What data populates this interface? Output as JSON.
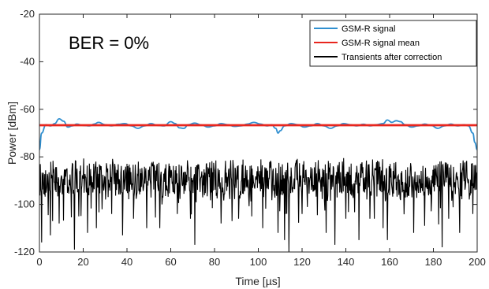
{
  "chart_data": {
    "type": "line",
    "title": "",
    "xlabel": "Time [µs]",
    "ylabel": "Power [dBm]",
    "xlim": [
      0,
      200
    ],
    "ylim": [
      -120,
      -20
    ],
    "xticks": [
      0,
      20,
      40,
      60,
      80,
      100,
      120,
      140,
      160,
      180,
      200
    ],
    "yticks": [
      -120,
      -100,
      -80,
      -60,
      -40,
      -20
    ],
    "grid": false,
    "legend_position": "top-right",
    "annotation": "BER = 0%",
    "series": [
      {
        "name": "GSM-R signal",
        "color": "#2f8fd0",
        "points": [
          [
            0,
            -77
          ],
          [
            1,
            -70
          ],
          [
            3,
            -66.5
          ],
          [
            5,
            -67
          ],
          [
            7,
            -66
          ],
          [
            9,
            -64
          ],
          [
            11,
            -65
          ],
          [
            13,
            -67.5
          ],
          [
            15,
            -67
          ],
          [
            17,
            -66.2
          ],
          [
            20,
            -66.8
          ],
          [
            23,
            -67
          ],
          [
            25,
            -66.2
          ],
          [
            27,
            -65.5
          ],
          [
            30,
            -66.5
          ],
          [
            33,
            -67
          ],
          [
            36,
            -66.3
          ],
          [
            39,
            -66
          ],
          [
            42,
            -67
          ],
          [
            45,
            -68
          ],
          [
            48,
            -67
          ],
          [
            51,
            -66
          ],
          [
            54,
            -66.8
          ],
          [
            57,
            -67
          ],
          [
            60,
            -65.2
          ],
          [
            62,
            -66
          ],
          [
            64,
            -67.8
          ],
          [
            66,
            -68
          ],
          [
            68,
            -66.5
          ],
          [
            71,
            -65.8
          ],
          [
            74,
            -66.6
          ],
          [
            77,
            -67.5
          ],
          [
            80,
            -67
          ],
          [
            83,
            -66
          ],
          [
            86,
            -66.5
          ],
          [
            89,
            -67.2
          ],
          [
            92,
            -67
          ],
          [
            95,
            -66.2
          ],
          [
            98,
            -65.5
          ],
          [
            101,
            -66.2
          ],
          [
            104,
            -67
          ],
          [
            106,
            -66.5
          ],
          [
            108,
            -68
          ],
          [
            109,
            -70
          ],
          [
            110,
            -69
          ],
          [
            112,
            -67
          ],
          [
            115,
            -66
          ],
          [
            118,
            -66.5
          ],
          [
            121,
            -67.5
          ],
          [
            124,
            -67
          ],
          [
            127,
            -66
          ],
          [
            130,
            -67
          ],
          [
            133,
            -68
          ],
          [
            136,
            -67
          ],
          [
            139,
            -66
          ],
          [
            142,
            -66.5
          ],
          [
            145,
            -67
          ],
          [
            148,
            -66.3
          ],
          [
            151,
            -67
          ],
          [
            154,
            -66.5
          ],
          [
            157,
            -66
          ],
          [
            159,
            -64.5
          ],
          [
            161,
            -65.5
          ],
          [
            163,
            -64.8
          ],
          [
            165,
            -65.2
          ],
          [
            167,
            -66.5
          ],
          [
            170,
            -67.5
          ],
          [
            173,
            -67
          ],
          [
            176,
            -66.2
          ],
          [
            179,
            -66.8
          ],
          [
            182,
            -68
          ],
          [
            185,
            -67
          ],
          [
            188,
            -66.2
          ],
          [
            191,
            -67
          ],
          [
            194,
            -66.5
          ],
          [
            196,
            -67
          ],
          [
            198,
            -70
          ],
          [
            199,
            -74
          ],
          [
            200,
            -77
          ]
        ]
      },
      {
        "name": "GSM-R signal mean",
        "color": "#e8261e",
        "points": [
          [
            0,
            -66.7
          ],
          [
            200,
            -66.7
          ]
        ]
      },
      {
        "name": "Transients after correction",
        "color": "#000000",
        "generated": true,
        "x_step": 0.2,
        "baseline": -90,
        "spread": [
          -82,
          -97
        ],
        "deep_dips": [
          [
            1,
            -116
          ],
          [
            5,
            -113
          ],
          [
            6,
            -107
          ],
          [
            9,
            -108
          ],
          [
            16,
            -119
          ],
          [
            18,
            -105
          ],
          [
            22,
            -112
          ],
          [
            26,
            -110
          ],
          [
            33,
            -104
          ],
          [
            38,
            -113
          ],
          [
            43,
            -106
          ],
          [
            49,
            -110
          ],
          [
            55,
            -110
          ],
          [
            63,
            -104
          ],
          [
            69,
            -106
          ],
          [
            71,
            -117
          ],
          [
            83,
            -108
          ],
          [
            88,
            -107
          ],
          [
            91,
            -106
          ],
          [
            97,
            -105
          ],
          [
            102,
            -110
          ],
          [
            109,
            -112
          ],
          [
            112,
            -115
          ],
          [
            114,
            -120
          ],
          [
            120,
            -104
          ],
          [
            131,
            -112
          ],
          [
            135,
            -117
          ],
          [
            140,
            -106
          ],
          [
            146,
            -115
          ],
          [
            151,
            -106
          ],
          [
            157,
            -110
          ],
          [
            159,
            -115
          ],
          [
            171,
            -112
          ],
          [
            176,
            -109
          ],
          [
            184,
            -118
          ],
          [
            187,
            -106
          ],
          [
            192,
            -112
          ],
          [
            198,
            -104
          ]
        ]
      }
    ]
  }
}
